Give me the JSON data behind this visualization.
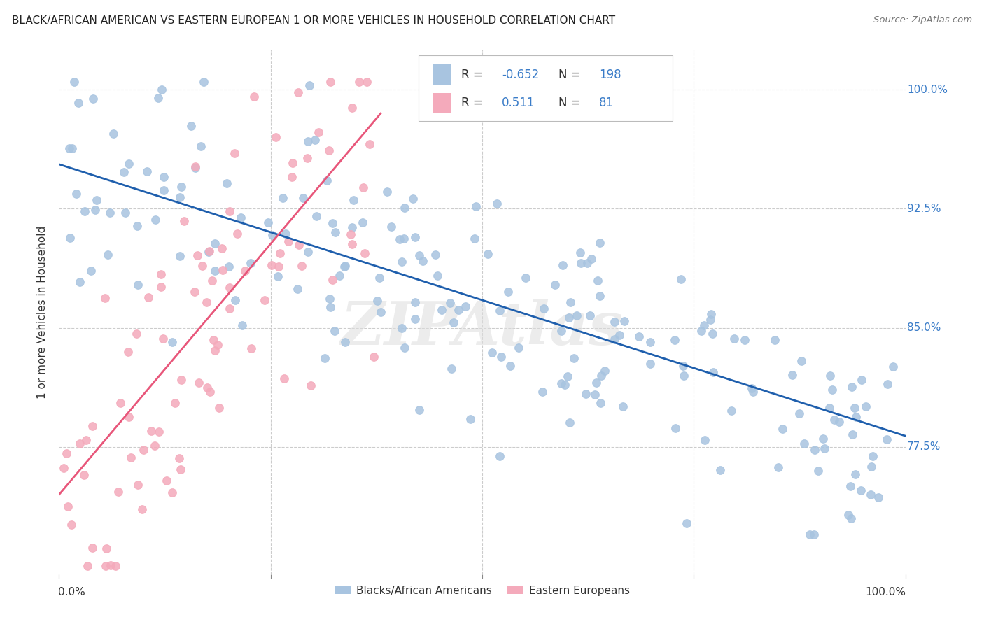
{
  "title": "BLACK/AFRICAN AMERICAN VS EASTERN EUROPEAN 1 OR MORE VEHICLES IN HOUSEHOLD CORRELATION CHART",
  "source": "Source: ZipAtlas.com",
  "ylabel": "1 or more Vehicles in Household",
  "ytick_labels": [
    "100.0%",
    "92.5%",
    "85.0%",
    "77.5%"
  ],
  "ytick_values": [
    1.0,
    0.925,
    0.85,
    0.775
  ],
  "xlim": [
    0.0,
    1.0
  ],
  "ylim": [
    0.695,
    1.025
  ],
  "blue_color": "#A8C4E0",
  "pink_color": "#F4AABB",
  "blue_line_color": "#1F5FAD",
  "pink_line_color": "#E8567A",
  "watermark": "ZIPAtlas",
  "legend_blue_R": "-0.652",
  "legend_blue_N": "198",
  "legend_pink_R": "0.511",
  "legend_pink_N": "81",
  "blue_trend_y_start": 0.953,
  "blue_trend_y_end": 0.782,
  "pink_trend_x_start": 0.0,
  "pink_trend_x_end": 0.38,
  "pink_trend_y_start": 0.745,
  "pink_trend_y_end": 0.985,
  "blue_seed": 12,
  "pink_seed": 7
}
